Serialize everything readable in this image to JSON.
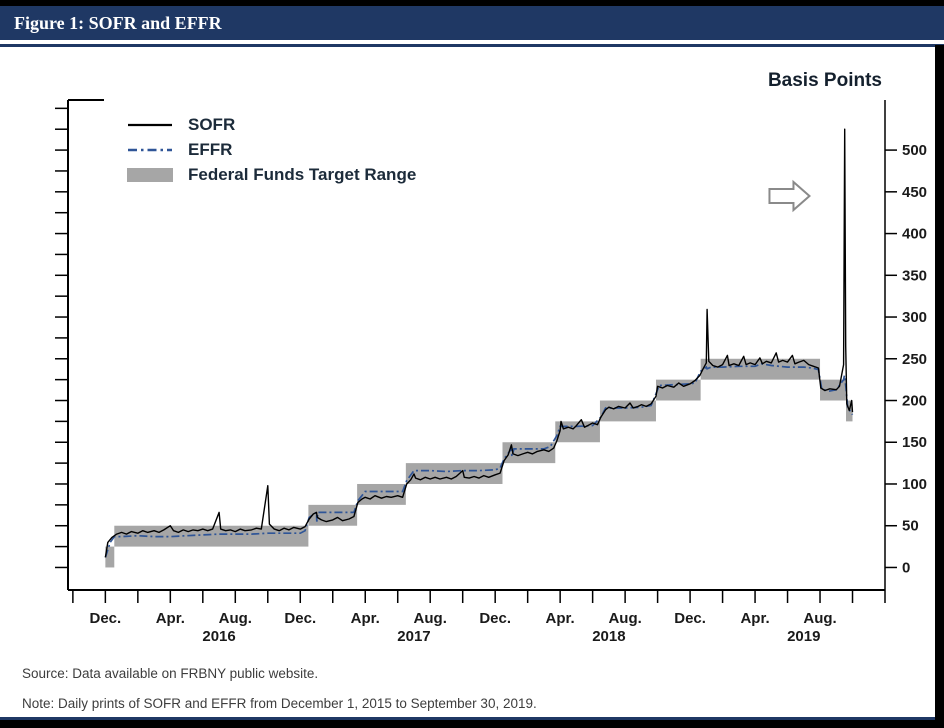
{
  "header": {
    "title": "Figure 1: SOFR and EFFR"
  },
  "footer": {
    "source": "Source: Data available on FRBNY public website.",
    "note": "Note: Daily prints of SOFR and EFFR from December 1, 2015 to September 30, 2019."
  },
  "chart_data": {
    "type": "line",
    "title": "SOFR and EFFR",
    "y_axis": {
      "label": "Basis Points",
      "min": -27,
      "max": 560,
      "right_ticks": [
        0,
        50,
        100,
        150,
        200,
        250,
        300,
        350,
        400,
        450,
        500
      ],
      "left_tick_step": 25
    },
    "x_axis": {
      "unit": "months since Dec 1, 2015",
      "min": -2.3,
      "max": 48,
      "tick_start": -2,
      "tick_end": 48,
      "minor_tick_step": 2,
      "month_labels": [
        {
          "m": 0,
          "label": "Dec."
        },
        {
          "m": 4,
          "label": "Apr."
        },
        {
          "m": 8,
          "label": "Aug."
        },
        {
          "m": 12,
          "label": "Dec."
        },
        {
          "m": 16,
          "label": "Apr."
        },
        {
          "m": 20,
          "label": "Aug."
        },
        {
          "m": 24,
          "label": "Dec."
        },
        {
          "m": 28,
          "label": "Apr."
        },
        {
          "m": 32,
          "label": "Aug."
        },
        {
          "m": 36,
          "label": "Dec."
        },
        {
          "m": 40,
          "label": "Apr."
        },
        {
          "m": 44,
          "label": "Aug."
        }
      ],
      "year_labels": [
        {
          "m": 7,
          "label": "2016"
        },
        {
          "m": 19,
          "label": "2017"
        },
        {
          "m": 31,
          "label": "2018"
        },
        {
          "m": 43,
          "label": "2019"
        }
      ]
    },
    "legend": [
      {
        "label": "SOFR",
        "swatch": "solid-black-line"
      },
      {
        "label": "EFFR",
        "swatch": "dashdot-blue-line"
      },
      {
        "label": "Federal Funds Target Range",
        "swatch": "gray-box"
      }
    ],
    "colors": {
      "sofr": "#000000",
      "effr": "#2f5597",
      "band": "#a6a6a6",
      "arrow": "#8a8a8a",
      "header": "#1f3864"
    },
    "target_range_steps": [
      {
        "from": 0.0,
        "to": 0.55,
        "low": 0,
        "high": 25
      },
      {
        "from": 0.55,
        "to": 12.5,
        "low": 25,
        "high": 50
      },
      {
        "from": 12.5,
        "to": 15.5,
        "low": 50,
        "high": 75
      },
      {
        "from": 15.5,
        "to": 18.5,
        "low": 75,
        "high": 100
      },
      {
        "from": 18.5,
        "to": 24.45,
        "low": 100,
        "high": 125
      },
      {
        "from": 24.45,
        "to": 27.7,
        "low": 125,
        "high": 150
      },
      {
        "from": 27.7,
        "to": 30.45,
        "low": 150,
        "high": 175
      },
      {
        "from": 30.45,
        "to": 33.9,
        "low": 175,
        "high": 200
      },
      {
        "from": 33.9,
        "to": 36.65,
        "low": 200,
        "high": 225
      },
      {
        "from": 36.65,
        "to": 44.0,
        "low": 225,
        "high": 250
      },
      {
        "from": 44.0,
        "to": 45.6,
        "low": 200,
        "high": 225
      },
      {
        "from": 45.6,
        "to": 46.0,
        "low": 175,
        "high": 200
      }
    ],
    "series": [
      {
        "name": "SOFR",
        "style": "solid",
        "points": [
          [
            0,
            12
          ],
          [
            0.15,
            30
          ],
          [
            0.4,
            36
          ],
          [
            0.7,
            40
          ],
          [
            1,
            42
          ],
          [
            1.3,
            40
          ],
          [
            1.6,
            43
          ],
          [
            2,
            41
          ],
          [
            2.3,
            44
          ],
          [
            2.6,
            42
          ],
          [
            3,
            44
          ],
          [
            3.3,
            42
          ],
          [
            3.6,
            45
          ],
          [
            4,
            50
          ],
          [
            4.2,
            44
          ],
          [
            4.5,
            42
          ],
          [
            4.8,
            45
          ],
          [
            5.1,
            43
          ],
          [
            5.4,
            45
          ],
          [
            5.7,
            44
          ],
          [
            6,
            46
          ],
          [
            6.3,
            44
          ],
          [
            6.6,
            46
          ],
          [
            7,
            66
          ],
          [
            7.1,
            46
          ],
          [
            7.4,
            44
          ],
          [
            7.7,
            45
          ],
          [
            8,
            43
          ],
          [
            8.3,
            46
          ],
          [
            8.6,
            44
          ],
          [
            9,
            45
          ],
          [
            9.3,
            47
          ],
          [
            9.6,
            46
          ],
          [
            10,
            98
          ],
          [
            10.1,
            52
          ],
          [
            10.4,
            46
          ],
          [
            10.7,
            44
          ],
          [
            11,
            47
          ],
          [
            11.3,
            45
          ],
          [
            11.6,
            48
          ],
          [
            12,
            46
          ],
          [
            12.3,
            49
          ],
          [
            12.55,
            58
          ],
          [
            12.8,
            64
          ],
          [
            13,
            66
          ],
          [
            13.05,
            60
          ],
          [
            13.3,
            57
          ],
          [
            13.6,
            55
          ],
          [
            14,
            57
          ],
          [
            14.3,
            60
          ],
          [
            14.6,
            56
          ],
          [
            15,
            58
          ],
          [
            15.3,
            61
          ],
          [
            15.55,
            78
          ],
          [
            15.8,
            82
          ],
          [
            16,
            84
          ],
          [
            16.3,
            82
          ],
          [
            16.6,
            86
          ],
          [
            17,
            83
          ],
          [
            17.3,
            85
          ],
          [
            17.6,
            84
          ],
          [
            18,
            86
          ],
          [
            18.3,
            84
          ],
          [
            18.55,
            100
          ],
          [
            18.8,
            105
          ],
          [
            19,
            112
          ],
          [
            19.1,
            107
          ],
          [
            19.4,
            105
          ],
          [
            19.7,
            108
          ],
          [
            20,
            106
          ],
          [
            20.3,
            108
          ],
          [
            20.6,
            106
          ],
          [
            21,
            108
          ],
          [
            21.3,
            106
          ],
          [
            21.6,
            109
          ],
          [
            22,
            116
          ],
          [
            22.1,
            108
          ],
          [
            22.4,
            107
          ],
          [
            22.7,
            109
          ],
          [
            23,
            107
          ],
          [
            23.3,
            110
          ],
          [
            23.6,
            108
          ],
          [
            24,
            111
          ],
          [
            24.3,
            113
          ],
          [
            24.55,
            128
          ],
          [
            24.8,
            135
          ],
          [
            25,
            147
          ],
          [
            25.1,
            136
          ],
          [
            25.4,
            134
          ],
          [
            25.7,
            136
          ],
          [
            26,
            138
          ],
          [
            26.3,
            136
          ],
          [
            26.6,
            139
          ],
          [
            27,
            141
          ],
          [
            27.3,
            139
          ],
          [
            27.6,
            143
          ],
          [
            27.8,
            152
          ],
          [
            28,
            164
          ],
          [
            28.05,
            175
          ],
          [
            28.2,
            166
          ],
          [
            28.5,
            168
          ],
          [
            28.8,
            166
          ],
          [
            29,
            170
          ],
          [
            29.3,
            177
          ],
          [
            29.5,
            168
          ],
          [
            29.8,
            171
          ],
          [
            30,
            173
          ],
          [
            30.3,
            171
          ],
          [
            30.5,
            180
          ],
          [
            30.8,
            189
          ],
          [
            31,
            192
          ],
          [
            31.3,
            190
          ],
          [
            31.6,
            193
          ],
          [
            32,
            191
          ],
          [
            32.3,
            197
          ],
          [
            32.5,
            191
          ],
          [
            32.8,
            193
          ],
          [
            33,
            195
          ],
          [
            33.3,
            193
          ],
          [
            33.6,
            196
          ],
          [
            33.9,
            205
          ],
          [
            34,
            217
          ],
          [
            34.3,
            215
          ],
          [
            34.6,
            218
          ],
          [
            35,
            216
          ],
          [
            35.3,
            221
          ],
          [
            35.6,
            217
          ],
          [
            36,
            220
          ],
          [
            36.3,
            224
          ],
          [
            36.6,
            230
          ],
          [
            36.8,
            238
          ],
          [
            37,
            245
          ],
          [
            37.05,
            309
          ],
          [
            37.15,
            247
          ],
          [
            37.4,
            242
          ],
          [
            37.7,
            240
          ],
          [
            38,
            243
          ],
          [
            38.3,
            254
          ],
          [
            38.4,
            242
          ],
          [
            38.7,
            244
          ],
          [
            39,
            242
          ],
          [
            39.3,
            253
          ],
          [
            39.45,
            243
          ],
          [
            39.7,
            245
          ],
          [
            40,
            243
          ],
          [
            40.3,
            251
          ],
          [
            40.45,
            244
          ],
          [
            40.7,
            247
          ],
          [
            41,
            245
          ],
          [
            41.3,
            257
          ],
          [
            41.45,
            246
          ],
          [
            41.7,
            248
          ],
          [
            42,
            246
          ],
          [
            42.3,
            254
          ],
          [
            42.45,
            244
          ],
          [
            42.7,
            246
          ],
          [
            43,
            248
          ],
          [
            43.3,
            243
          ],
          [
            43.6,
            241
          ],
          [
            43.9,
            239
          ],
          [
            44.05,
            215
          ],
          [
            44.3,
            212
          ],
          [
            44.6,
            214
          ],
          [
            45,
            213
          ],
          [
            45.2,
            217
          ],
          [
            45.45,
            243
          ],
          [
            45.52,
            525
          ],
          [
            45.58,
            265
          ],
          [
            45.65,
            196
          ],
          [
            45.8,
            188
          ],
          [
            45.95,
            200
          ],
          [
            46,
            186
          ]
        ]
      },
      {
        "name": "EFFR",
        "style": "dashdot",
        "points": [
          [
            0,
            12
          ],
          [
            0.3,
            30
          ],
          [
            0.55,
            37
          ],
          [
            1,
            37
          ],
          [
            2,
            38
          ],
          [
            3,
            37
          ],
          [
            4,
            37
          ],
          [
            5,
            38
          ],
          [
            6,
            39
          ],
          [
            7,
            40
          ],
          [
            8,
            40
          ],
          [
            9,
            40
          ],
          [
            10,
            41
          ],
          [
            11,
            41
          ],
          [
            12,
            41
          ],
          [
            12.3,
            44
          ],
          [
            12.55,
            60
          ],
          [
            13,
            66
          ],
          [
            13.02,
            55
          ],
          [
            13.1,
            66
          ],
          [
            14,
            66
          ],
          [
            15,
            66
          ],
          [
            15.3,
            66
          ],
          [
            15.55,
            80
          ],
          [
            16,
            91
          ],
          [
            17,
            91
          ],
          [
            18,
            91
          ],
          [
            18.3,
            91
          ],
          [
            18.55,
            104
          ],
          [
            19,
            116
          ],
          [
            20,
            116
          ],
          [
            21,
            115
          ],
          [
            22,
            116
          ],
          [
            23,
            116
          ],
          [
            24,
            117
          ],
          [
            24.3,
            119
          ],
          [
            24.55,
            130
          ],
          [
            25,
            142
          ],
          [
            25.03,
            133
          ],
          [
            25.15,
            142
          ],
          [
            26,
            142
          ],
          [
            27,
            142
          ],
          [
            27.4,
            145
          ],
          [
            27.8,
            158
          ],
          [
            28,
            169
          ],
          [
            29,
            169
          ],
          [
            30,
            170
          ],
          [
            30.5,
            180
          ],
          [
            30.8,
            191
          ],
          [
            31,
            191
          ],
          [
            32,
            191
          ],
          [
            33,
            192
          ],
          [
            33.6,
            194
          ],
          [
            33.9,
            208
          ],
          [
            34.1,
            218
          ],
          [
            35,
            219
          ],
          [
            36,
            220
          ],
          [
            36.3,
            221
          ],
          [
            36.65,
            235
          ],
          [
            37,
            240
          ],
          [
            37.05,
            238
          ],
          [
            37.3,
            240
          ],
          [
            38,
            240
          ],
          [
            39,
            241
          ],
          [
            40,
            241
          ],
          [
            40.4,
            244
          ],
          [
            41,
            242
          ],
          [
            42,
            240
          ],
          [
            43,
            240
          ],
          [
            43.5,
            239
          ],
          [
            43.9,
            237
          ],
          [
            44.1,
            214
          ],
          [
            44.5,
            211
          ],
          [
            45,
            213
          ],
          [
            45.45,
            225
          ],
          [
            45.5,
            230
          ],
          [
            45.6,
            215
          ],
          [
            45.7,
            192
          ],
          [
            46,
            183
          ]
        ]
      }
    ],
    "annotation_arrow": {
      "month": 43.35,
      "value": 445,
      "direction": "right"
    }
  }
}
